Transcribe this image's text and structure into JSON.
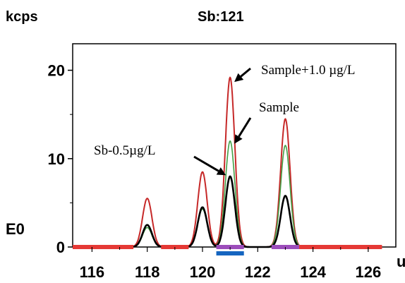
{
  "chart_data": {
    "type": "line",
    "title": "Sb:121",
    "ylabel": "kcps",
    "baseline_label": "E0",
    "xunit_label": "u",
    "xlim": [
      115.3,
      127.0
    ],
    "ylim": [
      0,
      23
    ],
    "xticks": [
      "116",
      "118",
      "120",
      "122",
      "124",
      "126"
    ],
    "yticks": [
      "0",
      "10",
      "20"
    ],
    "grid": false,
    "series": [
      {
        "color": "#c62828",
        "peaks": [
          [
            118,
            5.5
          ],
          [
            120,
            8.5
          ],
          [
            121,
            19.2
          ],
          [
            123,
            14.5
          ]
        ]
      },
      {
        "color": "#43a047",
        "peaks": [
          [
            118,
            2.2
          ],
          [
            120,
            4.3
          ],
          [
            121,
            12.0
          ],
          [
            123,
            11.5
          ]
        ]
      },
      {
        "color": "#000000",
        "peaks": [
          [
            118,
            2.5
          ],
          [
            120,
            4.5
          ],
          [
            121,
            8.0
          ],
          [
            123,
            5.8
          ]
        ]
      }
    ],
    "annotations": [
      {
        "text": "Sample+1.0 µg/L",
        "points_to": [
          121,
          19.0
        ]
      },
      {
        "text": "Sample",
        "points_to": [
          121,
          12.0
        ]
      },
      {
        "text": "Sb-0.5µg/L",
        "points_to": [
          121,
          7.8
        ]
      }
    ],
    "baseline_segments": [
      {
        "from": 115.3,
        "to": 117.5,
        "color": "#e53935"
      },
      {
        "from": 118.5,
        "to": 119.5,
        "color": "#e53935"
      },
      {
        "from": 120.5,
        "to": 121.5,
        "color": "#9c4dbb"
      },
      {
        "from": 122.5,
        "to": 123.5,
        "color": "#9c4dbb"
      },
      {
        "from": 123.5,
        "to": 126.5,
        "color": "#e53935"
      }
    ],
    "marker_bar": {
      "from": 120.5,
      "to": 121.5,
      "color": "#1565c0"
    }
  }
}
